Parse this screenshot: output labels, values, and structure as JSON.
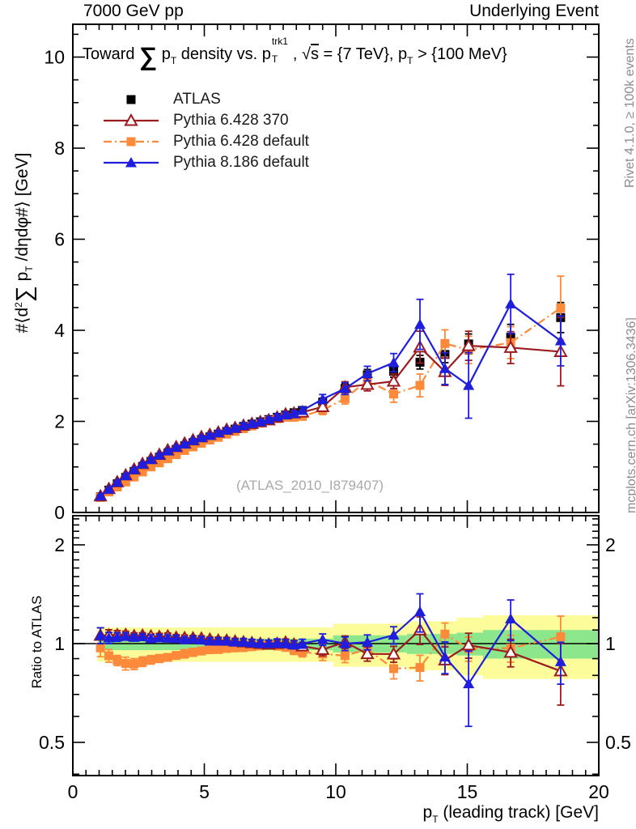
{
  "header": {
    "left": "7000 GeV pp",
    "right": "Underlying Event"
  },
  "title_parts": {
    "pre": "Toward ",
    "sum": "∑",
    "p1": " p",
    "p1sub": "T",
    "mid": " density vs. p",
    "stack_sup": "trk1",
    "stack_sub": "T",
    "comma": ", ",
    "sqrt": "√",
    "sqrt_arg": "s",
    "eq": " = {7 TeV}, p",
    "p2sub": "T",
    "post": " > {100 MeV}"
  },
  "ylabel_parts": {
    "h1": "#⟨d",
    "sup": "2",
    "sum": "∑",
    "p": " p",
    "sub": "T",
    "rest": " /dηdφ#⟩ [GeV]"
  },
  "ratio_label": "Ratio to ATLAS",
  "xlabel_parts": {
    "p": "p",
    "sub": "T",
    "rest": " (leading track) [GeV]"
  },
  "watermark": "(ATLAS_2010_I879407)",
  "side_notes": {
    "top": "Rivet 4.1.0, ≥ 100k events",
    "bottom": "mcplots.cern.ch [arXiv:1306.3436]"
  },
  "legend": {
    "items": [
      {
        "label": "ATLAS",
        "marker": "square",
        "line": "none",
        "color": "#000000"
      },
      {
        "label": "Pythia 6.428 370",
        "marker": "triangle-open",
        "line": "solid",
        "color": "#9b1b1f"
      },
      {
        "label": "Pythia 6.428 default",
        "marker": "square",
        "line": "dashdot",
        "color": "#fc8a3a"
      },
      {
        "label": "Pythia 8.186 default",
        "marker": "triangle",
        "line": "solid",
        "color": "#1e1edc"
      }
    ]
  },
  "colors": {
    "atlas": "#000000",
    "pythia6_370": "#9b1b1f",
    "pythia6_def": "#fc8a3a",
    "pythia8_def": "#1e1edc",
    "band_yellow": "#fcfc9a",
    "band_green": "#8ce68c",
    "frame": "#000000",
    "gray_text": "#8c8c8c"
  },
  "chart_data": {
    "type": "line",
    "title": "Toward ∑pT density vs. pT^trk1, √s = {7 TeV}, pT > {100 MeV}",
    "xlabel": "pT (leading track) [GeV]",
    "ylabel": "#⟨d²∑ pT /dηdφ#⟩ [GeV]",
    "ratio_ylabel": "Ratio to ATLAS",
    "xlim": [
      0,
      20
    ],
    "ylim_main": [
      0,
      10.72
    ],
    "ratio_ylim": [
      0.397,
      2.45
    ],
    "ratio_scale": "log",
    "grid": false,
    "legend_position": "top-left",
    "x_ticks": [
      {
        "v": 0,
        "t": "0"
      },
      {
        "v": 5,
        "t": "5"
      },
      {
        "v": 10,
        "t": "10"
      },
      {
        "v": 15,
        "t": "15"
      },
      {
        "v": 20,
        "t": "20"
      }
    ],
    "y_ticks_main": [
      {
        "v": 0,
        "t": "0"
      },
      {
        "v": 2,
        "t": "2"
      },
      {
        "v": 4,
        "t": "4"
      },
      {
        "v": 6,
        "t": "6"
      },
      {
        "v": 8,
        "t": "8"
      },
      {
        "v": 10,
        "t": "10"
      }
    ],
    "y_ticks_ratio": [
      {
        "v": 0.5,
        "t": "0.5"
      },
      {
        "v": 1,
        "t": "1"
      },
      {
        "v": 2,
        "t": "2"
      }
    ],
    "ratio_minor_ticks": [
      0.4,
      0.6,
      0.7,
      0.8,
      0.9,
      1.1,
      1.2,
      1.3,
      1.4,
      1.5,
      1.6,
      1.7,
      1.8,
      1.9,
      2.1,
      2.2,
      2.3,
      2.4
    ],
    "x": [
      1.05,
      1.37,
      1.69,
      2.01,
      2.33,
      2.65,
      2.97,
      3.29,
      3.61,
      3.93,
      4.25,
      4.57,
      4.89,
      5.21,
      5.53,
      5.85,
      6.17,
      6.49,
      6.81,
      7.13,
      7.45,
      7.77,
      8.09,
      8.41,
      8.73,
      9.5,
      10.35,
      11.2,
      12.2,
      13.2,
      14.15,
      15.05,
      16.65,
      18.55
    ],
    "series": [
      {
        "name": "ATLAS",
        "color": "#000000",
        "marker": "square",
        "line": "none",
        "values": [
          0.34,
          0.49,
          0.63,
          0.77,
          0.9,
          1.01,
          1.12,
          1.21,
          1.3,
          1.38,
          1.46,
          1.53,
          1.6,
          1.66,
          1.72,
          1.78,
          1.83,
          1.89,
          1.94,
          1.99,
          2.04,
          2.09,
          2.14,
          2.19,
          2.24,
          2.42,
          2.72,
          3.02,
          3.1,
          3.3,
          3.47,
          3.7,
          3.85,
          4.28
        ],
        "errors": [
          0.02,
          0.02,
          0.02,
          0.02,
          0.02,
          0.02,
          0.03,
          0.03,
          0.03,
          0.03,
          0.03,
          0.03,
          0.04,
          0.04,
          0.04,
          0.04,
          0.04,
          0.05,
          0.05,
          0.05,
          0.05,
          0.06,
          0.06,
          0.06,
          0.07,
          0.09,
          0.1,
          0.12,
          0.13,
          0.15,
          0.18,
          0.22,
          0.28,
          0.33
        ]
      },
      {
        "name": "Pythia 6.428 default",
        "color": "#fc8a3a",
        "marker": "square",
        "line": "dashdot",
        "values": [
          0.33,
          0.45,
          0.56,
          0.67,
          0.78,
          0.89,
          1.0,
          1.09,
          1.18,
          1.27,
          1.36,
          1.44,
          1.52,
          1.59,
          1.65,
          1.72,
          1.78,
          1.84,
          1.9,
          1.96,
          2.02,
          2.06,
          2.09,
          2.09,
          2.11,
          2.25,
          2.5,
          2.9,
          2.6,
          2.79,
          3.71,
          3.57,
          3.73,
          4.49
        ],
        "errors": [
          0.02,
          0.02,
          0.02,
          0.03,
          0.03,
          0.03,
          0.03,
          0.03,
          0.03,
          0.03,
          0.04,
          0.04,
          0.04,
          0.04,
          0.04,
          0.04,
          0.05,
          0.05,
          0.05,
          0.05,
          0.05,
          0.06,
          0.06,
          0.06,
          0.07,
          0.1,
          0.12,
          0.15,
          0.18,
          0.25,
          0.3,
          0.3,
          0.35,
          0.7
        ]
      },
      {
        "name": "Pythia 6.428 370",
        "color": "#9b1b1f",
        "marker": "triangle-open",
        "line": "solid",
        "values": [
          0.36,
          0.52,
          0.67,
          0.82,
          0.95,
          1.07,
          1.18,
          1.27,
          1.37,
          1.44,
          1.52,
          1.59,
          1.66,
          1.71,
          1.76,
          1.82,
          1.86,
          1.91,
          1.95,
          1.99,
          2.03,
          2.09,
          2.16,
          2.18,
          2.2,
          2.32,
          2.75,
          2.81,
          2.88,
          3.63,
          3.09,
          3.66,
          3.62,
          3.53
        ],
        "errors": [
          0.02,
          0.02,
          0.02,
          0.02,
          0.02,
          0.02,
          0.02,
          0.03,
          0.03,
          0.03,
          0.03,
          0.03,
          0.03,
          0.03,
          0.04,
          0.04,
          0.04,
          0.04,
          0.04,
          0.05,
          0.05,
          0.05,
          0.05,
          0.06,
          0.06,
          0.1,
          0.12,
          0.14,
          0.16,
          0.35,
          0.3,
          0.32,
          0.35,
          0.75
        ]
      },
      {
        "name": "Pythia 8.186 default",
        "color": "#1e1edc",
        "marker": "triangle",
        "line": "solid",
        "values": [
          0.36,
          0.51,
          0.66,
          0.81,
          0.94,
          1.06,
          1.16,
          1.26,
          1.35,
          1.43,
          1.5,
          1.58,
          1.64,
          1.69,
          1.75,
          1.81,
          1.85,
          1.91,
          1.95,
          1.99,
          2.04,
          2.1,
          2.14,
          2.17,
          2.24,
          2.49,
          2.72,
          3.05,
          3.29,
          4.13,
          3.16,
          2.79,
          4.58,
          3.77
        ],
        "errors": [
          0.02,
          0.02,
          0.02,
          0.02,
          0.02,
          0.02,
          0.03,
          0.03,
          0.03,
          0.03,
          0.03,
          0.03,
          0.04,
          0.04,
          0.04,
          0.04,
          0.04,
          0.05,
          0.05,
          0.05,
          0.05,
          0.06,
          0.06,
          0.06,
          0.07,
          0.1,
          0.13,
          0.16,
          0.2,
          0.55,
          0.35,
          0.72,
          0.65,
          0.55
        ]
      }
    ],
    "ratio_reference": "ATLAS",
    "ratio_bands": [
      {
        "x": [
          0.95,
          9.9
        ],
        "yellow": [
          0.88,
          1.12
        ],
        "green": [
          0.955,
          1.035
        ]
      },
      {
        "x": [
          9.9,
          12.7
        ],
        "yellow": [
          0.85,
          1.15
        ],
        "green": [
          0.94,
          1.06
        ]
      },
      {
        "x": [
          12.7,
          14.6
        ],
        "yellow": [
          0.83,
          1.17
        ],
        "green": [
          0.93,
          1.07
        ]
      },
      {
        "x": [
          14.6,
          15.6
        ],
        "yellow": [
          0.8,
          1.2
        ],
        "green": [
          0.92,
          1.08
        ]
      },
      {
        "x": [
          15.6,
          20
        ],
        "yellow": [
          0.78,
          1.22
        ],
        "green": [
          0.9,
          1.1
        ]
      }
    ]
  }
}
